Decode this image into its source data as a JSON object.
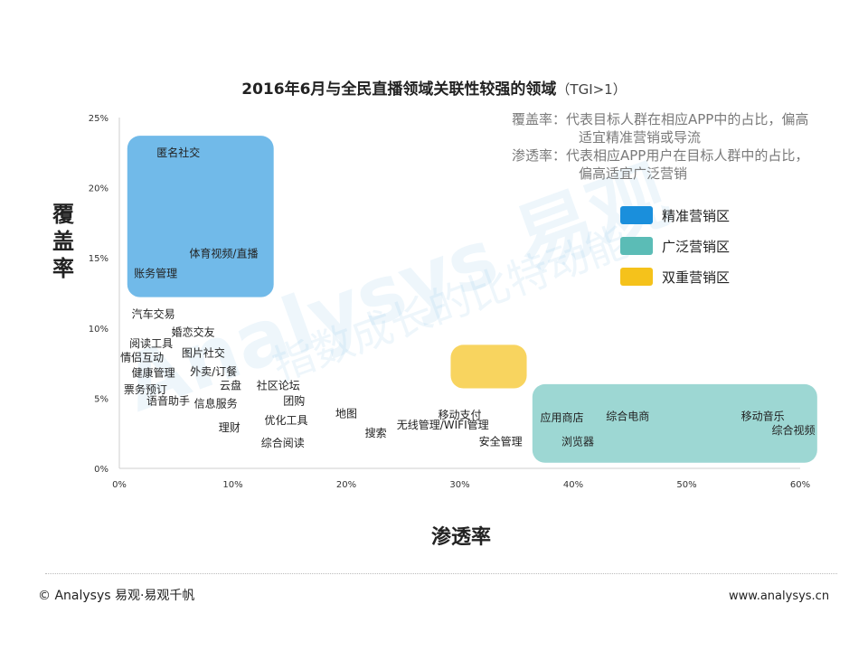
{
  "title": "2016年6月与全民直播领域关联性较强的领域",
  "title_suffix": "（TGI>1）",
  "notes": [
    "覆盖率：代表目标人群在相应APP中的占比，偏高适宜精准营销或导流",
    "渗透率：代表相应APP用户在目标人群中的占比，偏高适宜广泛营销"
  ],
  "legend": [
    {
      "label": "精准营销区",
      "color": "#1a8fdc"
    },
    {
      "label": "广泛营销区",
      "color": "#5bbcb6"
    },
    {
      "label": "双重营销区",
      "color": "#f5c21b"
    }
  ],
  "watermark": {
    "brand": "Analysys 易观",
    "slogan": "指数成长的比特动能"
  },
  "footer": {
    "copyright": "© Analysys 易观·易观千帆",
    "url": "www.analysys.cn"
  },
  "chart_data": {
    "type": "scatter",
    "xlabel": "渗透率",
    "ylabel": "覆盖率",
    "xlim": [
      0,
      60
    ],
    "ylim": [
      0,
      25
    ],
    "xticks": [
      "0%",
      "10%",
      "20%",
      "30%",
      "40%",
      "50%",
      "60%"
    ],
    "yticks": [
      "0%",
      "5%",
      "10%",
      "15%",
      "20%",
      "25%"
    ],
    "grid": false,
    "legend_position": "right",
    "zones": [
      {
        "name": "精准营销区",
        "x": [
          0.7,
          13.6
        ],
        "y": [
          12.2,
          23.7
        ],
        "color": "#1a8fdc",
        "opacity": 0.62
      },
      {
        "name": "广泛营销区",
        "x": [
          36.4,
          61.5
        ],
        "y": [
          0.4,
          6.0
        ],
        "color": "#5bbcb6",
        "opacity": 0.6
      },
      {
        "name": "双重营销区",
        "x": [
          29.2,
          35.9
        ],
        "y": [
          5.7,
          8.8
        ],
        "color": "#f5c21b",
        "opacity": 0.7
      }
    ],
    "points": [
      {
        "label": "匿名社交",
        "x": 5.2,
        "y": 22.5
      },
      {
        "label": "体育视频/直播",
        "x": 9.2,
        "y": 15.3
      },
      {
        "label": "账务管理",
        "x": 3.2,
        "y": 13.9
      },
      {
        "label": "汽车交易",
        "x": 3.0,
        "y": 11.0
      },
      {
        "label": "婚恋交友",
        "x": 6.5,
        "y": 9.7
      },
      {
        "label": "阅读工具",
        "x": 2.8,
        "y": 8.9
      },
      {
        "label": "图片社交",
        "x": 7.4,
        "y": 8.2
      },
      {
        "label": "情侣互动",
        "x": 2.0,
        "y": 7.9
      },
      {
        "label": "外卖/订餐",
        "x": 8.3,
        "y": 6.9
      },
      {
        "label": "健康管理",
        "x": 3.0,
        "y": 6.8
      },
      {
        "label": "云盘",
        "x": 9.8,
        "y": 5.9
      },
      {
        "label": "社区论坛",
        "x": 14.0,
        "y": 5.9
      },
      {
        "label": "票务预订",
        "x": 2.3,
        "y": 5.6
      },
      {
        "label": "团购",
        "x": 15.4,
        "y": 4.8
      },
      {
        "label": "语音助手",
        "x": 4.3,
        "y": 4.8
      },
      {
        "label": "信息服务",
        "x": 8.5,
        "y": 4.6
      },
      {
        "label": "地图",
        "x": 20.0,
        "y": 3.9
      },
      {
        "label": "移动支付",
        "x": 30.0,
        "y": 3.8
      },
      {
        "label": "优化工具",
        "x": 14.7,
        "y": 3.4
      },
      {
        "label": "无线管理/WIFI管理",
        "x": 28.5,
        "y": 3.1
      },
      {
        "label": "理财",
        "x": 9.7,
        "y": 2.9
      },
      {
        "label": "搜索",
        "x": 22.6,
        "y": 2.5
      },
      {
        "label": "安全管理",
        "x": 33.6,
        "y": 1.9
      },
      {
        "label": "综合阅读",
        "x": 14.4,
        "y": 1.8
      },
      {
        "label": "应用商店",
        "x": 39.0,
        "y": 3.6
      },
      {
        "label": "综合电商",
        "x": 44.8,
        "y": 3.7
      },
      {
        "label": "移动音乐",
        "x": 56.7,
        "y": 3.7
      },
      {
        "label": "综合视频",
        "x": 59.4,
        "y": 2.7
      },
      {
        "label": "浏览器",
        "x": 40.4,
        "y": 1.9
      }
    ]
  }
}
